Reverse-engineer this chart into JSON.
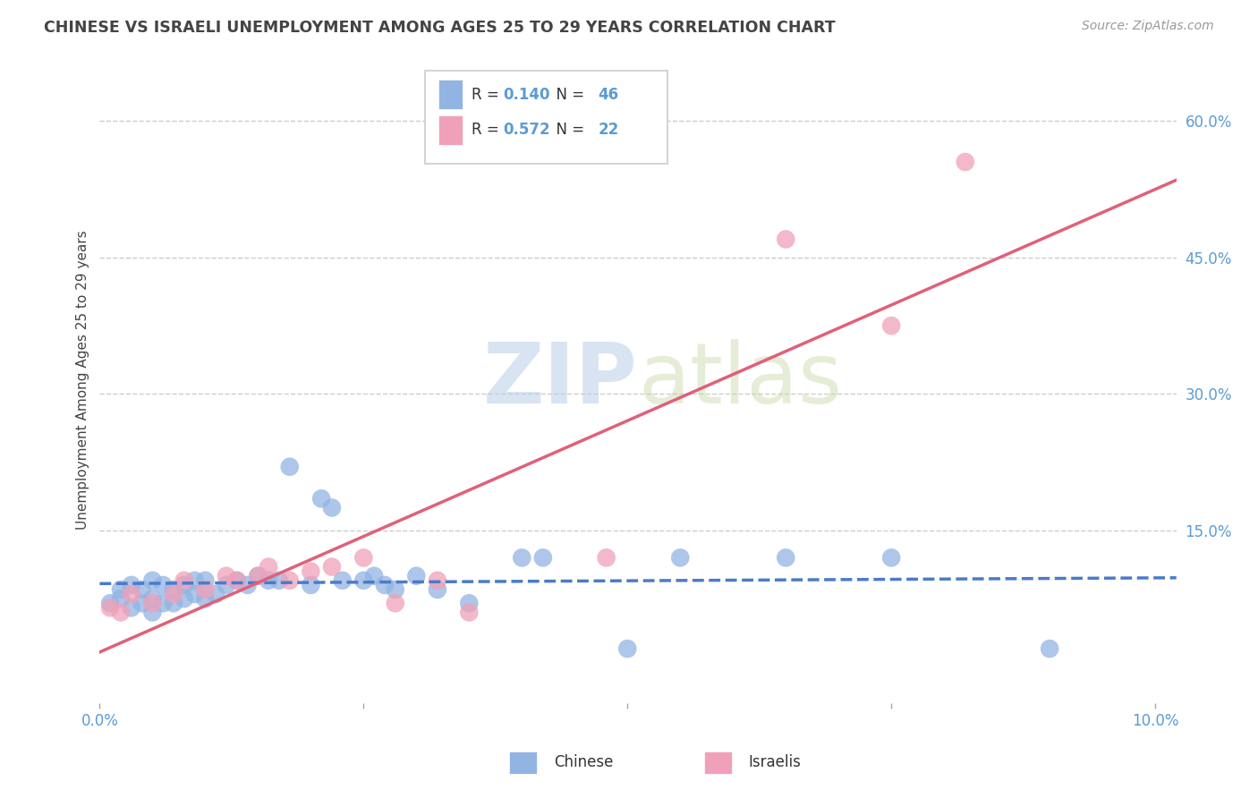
{
  "title": "CHINESE VS ISRAELI UNEMPLOYMENT AMONG AGES 25 TO 29 YEARS CORRELATION CHART",
  "source": "Source: ZipAtlas.com",
  "ylabel": "Unemployment Among Ages 25 to 29 years",
  "xlim": [
    0.0,
    0.102
  ],
  "ylim": [
    -0.04,
    0.67
  ],
  "ytick_labels_right": [
    "60.0%",
    "45.0%",
    "30.0%",
    "15.0%"
  ],
  "ytick_vals_right": [
    0.6,
    0.45,
    0.3,
    0.15
  ],
  "chinese_color": "#92b4e3",
  "israeli_color": "#f0a0b8",
  "chinese_line_color": "#4a7bc8",
  "israeli_line_color": "#e0607a",
  "chinese_R": 0.14,
  "chinese_N": 46,
  "israeli_R": 0.572,
  "israeli_N": 22,
  "watermark_zip": "ZIP",
  "watermark_atlas": "atlas",
  "background_color": "#ffffff",
  "grid_color": "#cccccc",
  "title_color": "#444444",
  "axis_color": "#5b9bd5",
  "chinese_x": [
    0.001,
    0.002,
    0.002,
    0.003,
    0.003,
    0.004,
    0.004,
    0.005,
    0.005,
    0.005,
    0.006,
    0.006,
    0.007,
    0.007,
    0.008,
    0.008,
    0.009,
    0.009,
    0.01,
    0.01,
    0.011,
    0.012,
    0.013,
    0.014,
    0.015,
    0.016,
    0.017,
    0.018,
    0.02,
    0.021,
    0.022,
    0.023,
    0.025,
    0.026,
    0.027,
    0.028,
    0.03,
    0.032,
    0.035,
    0.04,
    0.042,
    0.05,
    0.055,
    0.065,
    0.075,
    0.09
  ],
  "chinese_y": [
    0.07,
    0.075,
    0.085,
    0.065,
    0.09,
    0.07,
    0.085,
    0.06,
    0.075,
    0.095,
    0.07,
    0.09,
    0.07,
    0.085,
    0.075,
    0.09,
    0.08,
    0.095,
    0.075,
    0.095,
    0.08,
    0.09,
    0.095,
    0.09,
    0.1,
    0.095,
    0.095,
    0.22,
    0.09,
    0.185,
    0.175,
    0.095,
    0.095,
    0.1,
    0.09,
    0.085,
    0.1,
    0.085,
    0.07,
    0.12,
    0.12,
    0.02,
    0.12,
    0.12,
    0.12,
    0.02
  ],
  "israeli_x": [
    0.001,
    0.002,
    0.003,
    0.005,
    0.007,
    0.008,
    0.01,
    0.012,
    0.013,
    0.015,
    0.016,
    0.018,
    0.02,
    0.022,
    0.025,
    0.028,
    0.032,
    0.035,
    0.048,
    0.065,
    0.075,
    0.082
  ],
  "israeli_y": [
    0.065,
    0.06,
    0.08,
    0.07,
    0.08,
    0.095,
    0.085,
    0.1,
    0.095,
    0.1,
    0.11,
    0.095,
    0.105,
    0.11,
    0.12,
    0.07,
    0.095,
    0.06,
    0.12,
    0.47,
    0.375,
    0.555
  ]
}
